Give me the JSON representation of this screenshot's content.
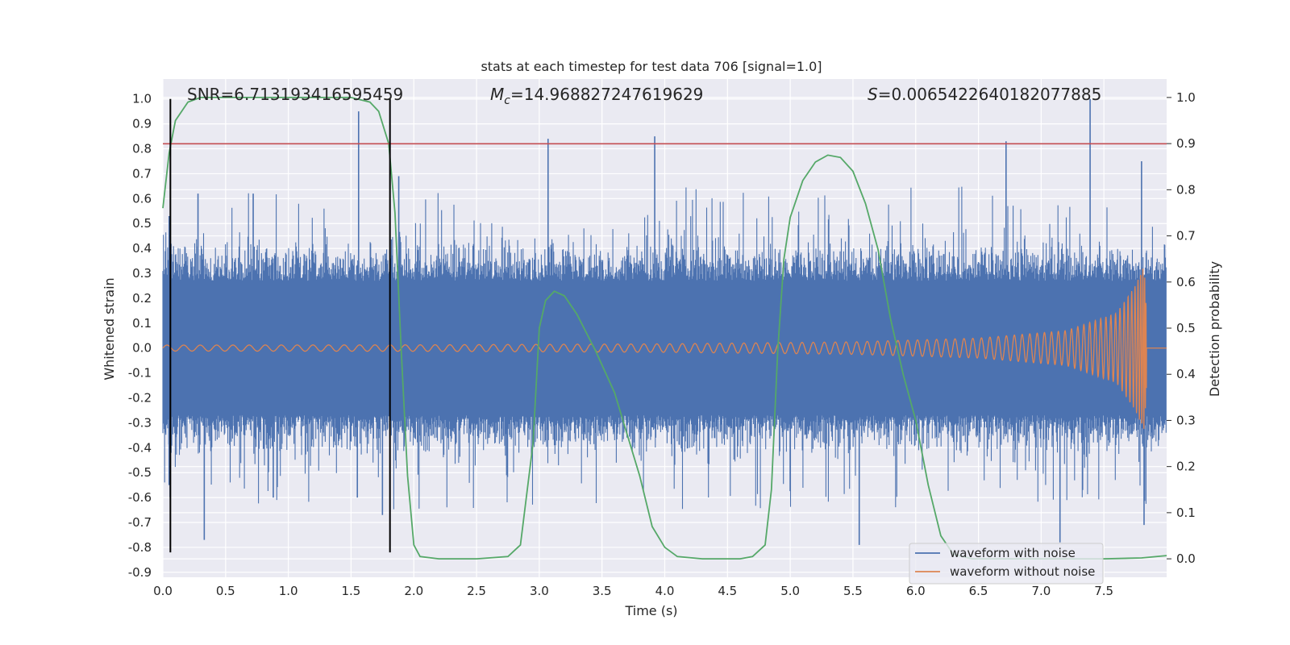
{
  "chart_data": {
    "type": "line",
    "title": "stats at each timestep for test data 706 [signal=1.0]",
    "xlabel": "Time (s)",
    "ylabel": "Whitened strain",
    "y2label": "Detection probability",
    "xlim": [
      0.0,
      8.0
    ],
    "ylim": [
      -0.92,
      1.08
    ],
    "y2lim": [
      -0.04,
      1.04
    ],
    "xticks": [
      "0.0",
      "0.5",
      "1.0",
      "1.5",
      "2.0",
      "2.5",
      "3.0",
      "3.5",
      "4.0",
      "4.5",
      "5.0",
      "5.5",
      "6.0",
      "6.5",
      "7.0",
      "7.5"
    ],
    "yticks": [
      "1.0",
      "0.9",
      "0.8",
      "0.7",
      "0.6",
      "0.5",
      "0.4",
      "0.3",
      "0.2",
      "0.1",
      "0.0",
      "-0.1",
      "-0.2",
      "-0.3",
      "-0.4",
      "-0.5",
      "-0.6",
      "-0.7",
      "-0.8",
      "-0.9"
    ],
    "y2ticks": [
      "1.0",
      "0.9",
      "0.8",
      "0.7",
      "0.6",
      "0.5",
      "0.4",
      "0.3",
      "0.2",
      "0.1",
      "0.0"
    ],
    "grid": true,
    "stats": {
      "snr_label": "SNR=6.713193416595459",
      "mc_symbol": "M",
      "mc_sub": "c",
      "mc_value": "=14.968827247619629",
      "s_symbol": "S",
      "s_value": "=0.0065422640182077885"
    },
    "threshold_line": {
      "axis": "y",
      "value": 0.82,
      "color": "#c44e52"
    },
    "vertical_markers": [
      0.06,
      1.81
    ],
    "series": [
      {
        "name": "waveform with noise",
        "color": "#4c72b0",
        "axis": "left",
        "description_of_trace": "dense noisy strain, roughly symmetric, amplitude mostly within +/-0.45",
        "peak_spikes": [
          {
            "t": 0.05,
            "v": 0.53
          },
          {
            "t": 0.05,
            "v": -0.55
          },
          {
            "t": 0.28,
            "v": 0.62
          },
          {
            "t": 0.33,
            "v": -0.77
          },
          {
            "t": 0.72,
            "v": 0.62
          },
          {
            "t": 0.88,
            "v": -0.6
          },
          {
            "t": 1.56,
            "v": 0.95
          },
          {
            "t": 1.55,
            "v": -0.6
          },
          {
            "t": 1.75,
            "v": -0.67
          },
          {
            "t": 1.88,
            "v": 0.69
          },
          {
            "t": 3.07,
            "v": 0.84
          },
          {
            "t": 3.92,
            "v": 0.85
          },
          {
            "t": 5.55,
            "v": -0.79
          },
          {
            "t": 6.72,
            "v": 0.83
          },
          {
            "t": 7.39,
            "v": 1.0
          },
          {
            "t": 7.8,
            "v": 0.75
          },
          {
            "t": 7.15,
            "v": -0.78
          },
          {
            "t": 7.82,
            "v": -0.71
          }
        ]
      },
      {
        "name": "waveform without noise",
        "color": "#dd8452",
        "axis": "left",
        "description_of_trace": "chirp: small oscillation ~+/-0.01 growing to ~+/-0.33 near t=7.82, then zero",
        "envelope": [
          [
            0.0,
            0.012
          ],
          [
            2.0,
            0.013
          ],
          [
            4.0,
            0.017
          ],
          [
            5.5,
            0.025
          ],
          [
            6.5,
            0.04
          ],
          [
            7.2,
            0.07
          ],
          [
            7.6,
            0.14
          ],
          [
            7.75,
            0.25
          ],
          [
            7.82,
            0.33
          ],
          [
            7.86,
            0.0
          ],
          [
            8.0,
            0.0
          ]
        ]
      },
      {
        "name": "detection probability",
        "color": "#55a868",
        "axis": "right",
        "points": [
          [
            0.0,
            0.76
          ],
          [
            0.05,
            0.88
          ],
          [
            0.1,
            0.95
          ],
          [
            0.2,
            0.99
          ],
          [
            0.3,
            1.0
          ],
          [
            0.5,
            1.0
          ],
          [
            1.0,
            1.0
          ],
          [
            1.5,
            1.0
          ],
          [
            1.65,
            0.99
          ],
          [
            1.72,
            0.97
          ],
          [
            1.8,
            0.9
          ],
          [
            1.85,
            0.75
          ],
          [
            1.9,
            0.45
          ],
          [
            1.95,
            0.18
          ],
          [
            2.0,
            0.03
          ],
          [
            2.05,
            0.005
          ],
          [
            2.2,
            0.0
          ],
          [
            2.5,
            0.0
          ],
          [
            2.75,
            0.005
          ],
          [
            2.85,
            0.03
          ],
          [
            2.95,
            0.25
          ],
          [
            3.0,
            0.5
          ],
          [
            3.05,
            0.56
          ],
          [
            3.12,
            0.58
          ],
          [
            3.2,
            0.57
          ],
          [
            3.3,
            0.53
          ],
          [
            3.45,
            0.45
          ],
          [
            3.6,
            0.36
          ],
          [
            3.7,
            0.27
          ],
          [
            3.8,
            0.18
          ],
          [
            3.9,
            0.07
          ],
          [
            4.0,
            0.025
          ],
          [
            4.1,
            0.005
          ],
          [
            4.3,
            0.0
          ],
          [
            4.6,
            0.0
          ],
          [
            4.7,
            0.005
          ],
          [
            4.8,
            0.03
          ],
          [
            4.85,
            0.15
          ],
          [
            4.9,
            0.45
          ],
          [
            4.95,
            0.65
          ],
          [
            5.0,
            0.74
          ],
          [
            5.1,
            0.82
          ],
          [
            5.2,
            0.86
          ],
          [
            5.3,
            0.875
          ],
          [
            5.4,
            0.87
          ],
          [
            5.5,
            0.84
          ],
          [
            5.6,
            0.77
          ],
          [
            5.7,
            0.67
          ],
          [
            5.8,
            0.52
          ],
          [
            5.9,
            0.4
          ],
          [
            6.0,
            0.3
          ],
          [
            6.1,
            0.16
          ],
          [
            6.2,
            0.05
          ],
          [
            6.3,
            0.01
          ],
          [
            6.45,
            0.0
          ],
          [
            7.0,
            0.0
          ],
          [
            7.5,
            0.0
          ],
          [
            7.8,
            0.002
          ],
          [
            8.0,
            0.007
          ]
        ]
      }
    ],
    "legend": {
      "placement": "lower-right",
      "entries": [
        {
          "label": "waveform with noise",
          "color": "#4c72b0"
        },
        {
          "label": "waveform without noise",
          "color": "#dd8452"
        }
      ]
    },
    "colors": {
      "axes_bg": "#eaeaf2",
      "grid": "#ffffff",
      "marker": "#000000"
    }
  }
}
